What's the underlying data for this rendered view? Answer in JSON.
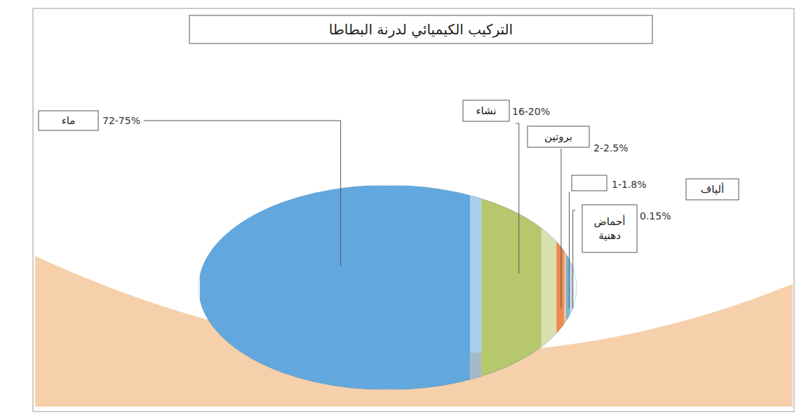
{
  "chart_data": {
    "type": "bar",
    "orientation": "horizontal",
    "stacked": true,
    "title": "التركيب الكيميائي لدرنة البطاطا",
    "categories": [
      "ماء",
      "نشاء",
      "بروتين",
      null,
      "أحماض دهنية"
    ],
    "values": [
      [
        72,
        75
      ],
      [
        16,
        20
      ],
      [
        2,
        2.5
      ],
      [
        1,
        1.8
      ],
      [
        0.15,
        0.15
      ]
    ],
    "value_labels": [
      "72-75%",
      "16-20%",
      "2-2.5%",
      "1-1.8%",
      "0.15%"
    ],
    "colors": [
      "#62a8de",
      "#b6c76c",
      "#ec8a4e",
      "#7fb3d1",
      "#d4c5a1"
    ],
    "data_labels": true,
    "tick_labels": false,
    "xlim": [
      0,
      100
    ],
    "annotations": [
      "ألياف"
    ]
  }
}
